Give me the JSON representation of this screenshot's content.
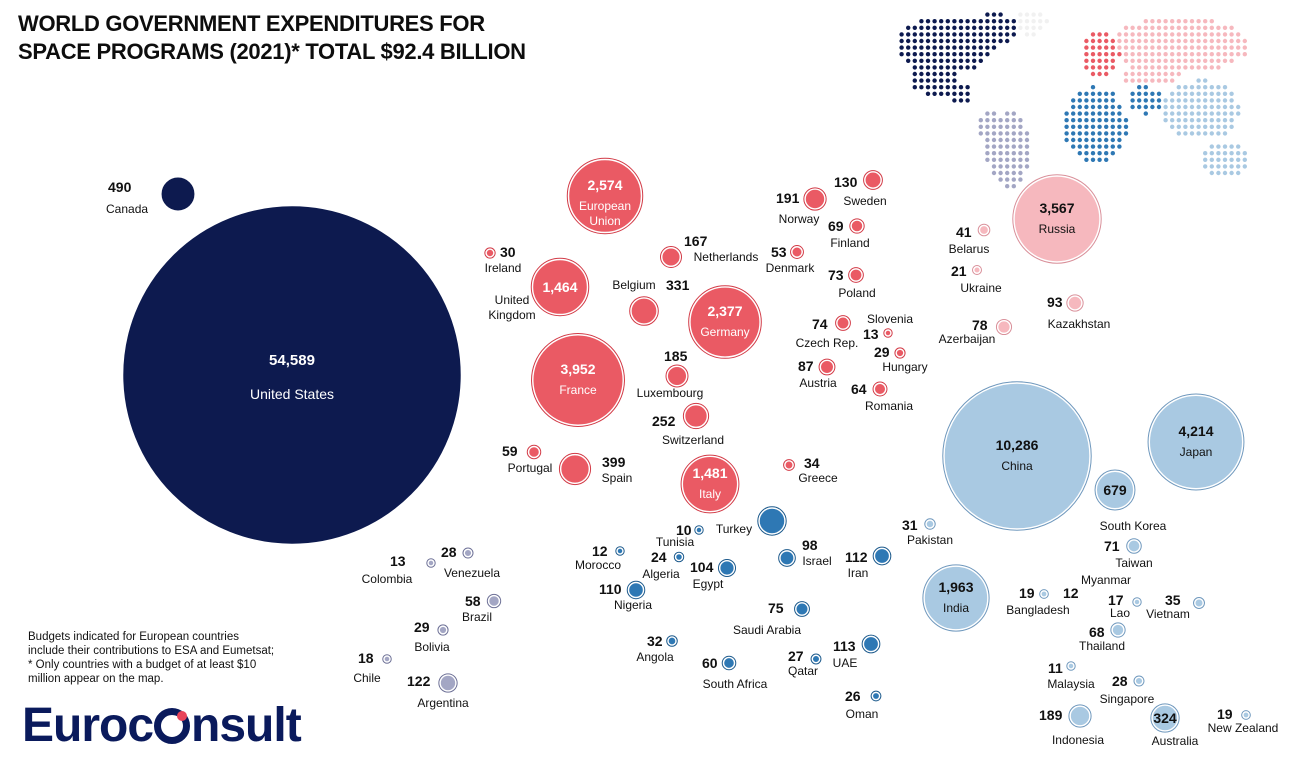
{
  "title_line1": "WORLD GOVERNMENT EXPENDITURES FOR",
  "title_line2": "SPACE PROGRAMS (2021)* TOTAL $92.4 BILLION",
  "footnote_line1": "Budgets indicated for European countries",
  "footnote_line2": "include their contributions to ESA and Eumetsat;",
  "footnote_line3": "* Only countries with a budget of at least  $10",
  "footnote_line4": "million appear on the map.",
  "logo_left": "Euroc",
  "logo_right": "nsult",
  "colors": {
    "north_america": "#0d1a4f",
    "europe": "#ea5a64",
    "russia_cis": "#f6b8be",
    "middle_east_africa": "#2e78b4",
    "latin_america": "#a3a6c4",
    "asia_pacific": "#a9c9e2"
  },
  "chart_data": {
    "type": "bubble",
    "title": "WORLD GOVERNMENT EXPENDITURES FOR SPACE PROGRAMS (2021)* TOTAL $92.4 BILLION",
    "total": "$92.4 BILLION",
    "points": [
      {
        "name": "United States",
        "value": 54589,
        "display": "54,589",
        "region": "north_america"
      },
      {
        "name": "Canada",
        "value": 490,
        "display": "490",
        "region": "north_america"
      },
      {
        "name": "European Union",
        "value": 2574,
        "display": "2,574",
        "region": "europe"
      },
      {
        "name": "United Kingdom",
        "value": 1464,
        "display": "1,464",
        "region": "europe"
      },
      {
        "name": "France",
        "value": 3952,
        "display": "3,952",
        "region": "europe"
      },
      {
        "name": "Germany",
        "value": 2377,
        "display": "2,377",
        "region": "europe"
      },
      {
        "name": "Italy",
        "value": 1481,
        "display": "1,481",
        "region": "europe"
      },
      {
        "name": "Ireland",
        "value": 30,
        "display": "30",
        "region": "europe"
      },
      {
        "name": "Belgium",
        "value": 331,
        "display": "331",
        "region": "europe"
      },
      {
        "name": "Netherlands",
        "value": 167,
        "display": "167",
        "region": "europe"
      },
      {
        "name": "Luxembourg",
        "value": 185,
        "display": "185",
        "region": "europe"
      },
      {
        "name": "Switzerland",
        "value": 252,
        "display": "252",
        "region": "europe"
      },
      {
        "name": "Portugal",
        "value": 59,
        "display": "59",
        "region": "europe"
      },
      {
        "name": "Spain",
        "value": 399,
        "display": "399",
        "region": "europe"
      },
      {
        "name": "Greece",
        "value": 34,
        "display": "34",
        "region": "europe"
      },
      {
        "name": "Norway",
        "value": 191,
        "display": "191",
        "region": "europe"
      },
      {
        "name": "Sweden",
        "value": 130,
        "display": "130",
        "region": "europe"
      },
      {
        "name": "Finland",
        "value": 69,
        "display": "69",
        "region": "europe"
      },
      {
        "name": "Denmark",
        "value": 53,
        "display": "53",
        "region": "europe"
      },
      {
        "name": "Poland",
        "value": 73,
        "display": "73",
        "region": "europe"
      },
      {
        "name": "Czech Rep.",
        "value": 74,
        "display": "74",
        "region": "europe"
      },
      {
        "name": "Slovenia",
        "value": 13,
        "display": "13",
        "region": "europe"
      },
      {
        "name": "Hungary",
        "value": 29,
        "display": "29",
        "region": "europe"
      },
      {
        "name": "Austria",
        "value": 87,
        "display": "87",
        "region": "europe"
      },
      {
        "name": "Romania",
        "value": 64,
        "display": "64",
        "region": "europe"
      },
      {
        "name": "Russia",
        "value": 3567,
        "display": "3,567",
        "region": "russia_cis"
      },
      {
        "name": "Belarus",
        "value": 41,
        "display": "41",
        "region": "russia_cis"
      },
      {
        "name": "Ukraine",
        "value": 21,
        "display": "21",
        "region": "russia_cis"
      },
      {
        "name": "Kazakhstan",
        "value": 93,
        "display": "93",
        "region": "russia_cis"
      },
      {
        "name": "Azerbaijan",
        "value": 78,
        "display": "78",
        "region": "russia_cis"
      },
      {
        "name": "Turkey",
        "value": null,
        "display": "",
        "region": "middle_east_africa"
      },
      {
        "name": "Tunisia",
        "value": 10,
        "display": "10",
        "region": "middle_east_africa"
      },
      {
        "name": "Morocco",
        "value": 12,
        "display": "12",
        "region": "middle_east_africa"
      },
      {
        "name": "Algeria",
        "value": 24,
        "display": "24",
        "region": "middle_east_africa"
      },
      {
        "name": "Egypt",
        "value": 104,
        "display": "104",
        "region": "middle_east_africa"
      },
      {
        "name": "Nigeria",
        "value": 110,
        "display": "110",
        "region": "middle_east_africa"
      },
      {
        "name": "Israel",
        "value": 98,
        "display": "98",
        "region": "middle_east_africa"
      },
      {
        "name": "Iran",
        "value": 112,
        "display": "112",
        "region": "middle_east_africa"
      },
      {
        "name": "Saudi Arabia",
        "value": 75,
        "display": "75",
        "region": "middle_east_africa"
      },
      {
        "name": "Angola",
        "value": 32,
        "display": "32",
        "region": "middle_east_africa"
      },
      {
        "name": "South Africa",
        "value": 60,
        "display": "60",
        "region": "middle_east_africa"
      },
      {
        "name": "Qatar",
        "value": 27,
        "display": "27",
        "region": "middle_east_africa"
      },
      {
        "name": "UAE",
        "value": 113,
        "display": "113",
        "region": "middle_east_africa"
      },
      {
        "name": "Oman",
        "value": 26,
        "display": "26",
        "region": "middle_east_africa"
      },
      {
        "name": "Colombia",
        "value": 13,
        "display": "13",
        "region": "latin_america"
      },
      {
        "name": "Venezuela",
        "value": 28,
        "display": "28",
        "region": "latin_america"
      },
      {
        "name": "Brazil",
        "value": 58,
        "display": "58",
        "region": "latin_america"
      },
      {
        "name": "Bolivia",
        "value": 29,
        "display": "29",
        "region": "latin_america"
      },
      {
        "name": "Chile",
        "value": 18,
        "display": "18",
        "region": "latin_america"
      },
      {
        "name": "Argentina",
        "value": 122,
        "display": "122",
        "region": "latin_america"
      },
      {
        "name": "China",
        "value": 10286,
        "display": "10,286",
        "region": "asia_pacific"
      },
      {
        "name": "Japan",
        "value": 4214,
        "display": "4,214",
        "region": "asia_pacific"
      },
      {
        "name": "South Korea",
        "value": 679,
        "display": "679",
        "region": "asia_pacific"
      },
      {
        "name": "India",
        "value": 1963,
        "display": "1,963",
        "region": "asia_pacific"
      },
      {
        "name": "Pakistan",
        "value": 31,
        "display": "31",
        "region": "asia_pacific"
      },
      {
        "name": "Taiwan",
        "value": 71,
        "display": "71",
        "region": "asia_pacific"
      },
      {
        "name": "Myanmar",
        "value": 12,
        "display": "12",
        "region": "asia_pacific"
      },
      {
        "name": "Bangladesh",
        "value": 19,
        "display": "19",
        "region": "asia_pacific"
      },
      {
        "name": "Lao",
        "value": 17,
        "display": "17",
        "region": "asia_pacific"
      },
      {
        "name": "Vietnam",
        "value": 35,
        "display": "35",
        "region": "asia_pacific"
      },
      {
        "name": "Thailand",
        "value": 68,
        "display": "68",
        "region": "asia_pacific"
      },
      {
        "name": "Malaysia",
        "value": 11,
        "display": "11",
        "region": "asia_pacific"
      },
      {
        "name": "Singapore",
        "value": 28,
        "display": "28",
        "region": "asia_pacific"
      },
      {
        "name": "Indonesia",
        "value": 189,
        "display": "189",
        "region": "asia_pacific"
      },
      {
        "name": "Australia",
        "value": 324,
        "display": "324",
        "region": "asia_pacific"
      },
      {
        "name": "New Zealand",
        "value": 19,
        "display": "19",
        "region": "asia_pacific"
      }
    ]
  }
}
